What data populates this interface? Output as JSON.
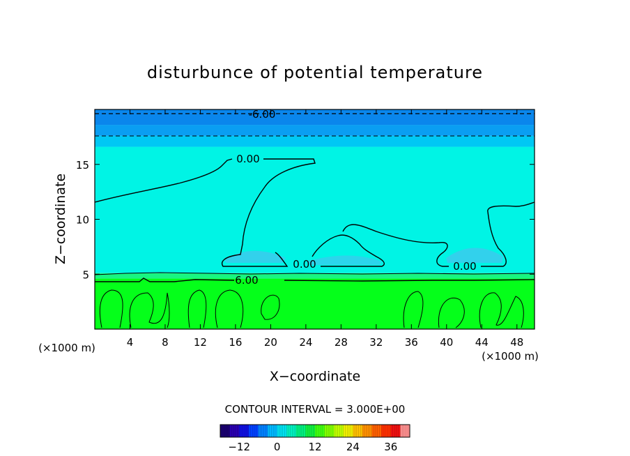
{
  "chart_data": {
    "type": "heatmap",
    "title": "disturbunce of potential temperature",
    "xlabel": "X−coordinate",
    "ylabel": "Z−coordinate",
    "x_unit_left": "(×1000 m)",
    "x_unit_right": "(×1000 m)",
    "xlim": [
      0,
      50
    ],
    "ylim": [
      0,
      20
    ],
    "x_ticks": [
      4,
      8,
      12,
      16,
      20,
      24,
      28,
      32,
      36,
      40,
      44,
      48
    ],
    "y_ticks": [
      5,
      10,
      15
    ],
    "contour_labels": [
      {
        "text": "-6.00",
        "x": 19,
        "z": 19.5
      },
      {
        "text": "0.00",
        "x": 17.5,
        "z": 15.5
      },
      {
        "text": "0.00",
        "x": 24,
        "z": 6.0
      },
      {
        "text": "0.00",
        "x": 42,
        "z": 5.7
      },
      {
        "text": "6.00",
        "x": 17.5,
        "z": 4.5
      }
    ],
    "regions": [
      {
        "z_from": 0,
        "z_to": 4.6,
        "value": 8,
        "color": "#05ff1a"
      },
      {
        "z_from": 4.6,
        "z_to": 5.1,
        "value": 5,
        "color": "#18f582"
      },
      {
        "z_from": 5.1,
        "z_to": 16.6,
        "value": 0,
        "color": "#00f4e5"
      },
      {
        "z_from": 16.6,
        "z_to": 17.6,
        "value": -2,
        "color": "#00c8f4"
      },
      {
        "z_from": 17.6,
        "z_to": 18.6,
        "value": -4,
        "color": "#0a9ef2"
      },
      {
        "z_from": 18.6,
        "z_to": 20,
        "value": -6,
        "color": "#0a86ec"
      }
    ],
    "contour_interval_label": "CONTOUR INTERVAL = 3.000E+00",
    "colorbar": {
      "range": [
        -18,
        42
      ],
      "tick_labels": [
        "−12",
        "0",
        "12",
        "24",
        "36"
      ],
      "tick_values": [
        -12,
        0,
        12,
        24,
        36
      ],
      "colors": [
        "#1a0070",
        "#2a00b0",
        "#1010e0",
        "#0040ff",
        "#0080ff",
        "#00b8ff",
        "#00e0f0",
        "#00f0c0",
        "#00f080",
        "#10f040",
        "#40ff10",
        "#80ff00",
        "#c0ff00",
        "#f0f000",
        "#ffc000",
        "#ff9000",
        "#ff6000",
        "#ff3000",
        "#f01010",
        "#ff9090"
      ]
    }
  }
}
